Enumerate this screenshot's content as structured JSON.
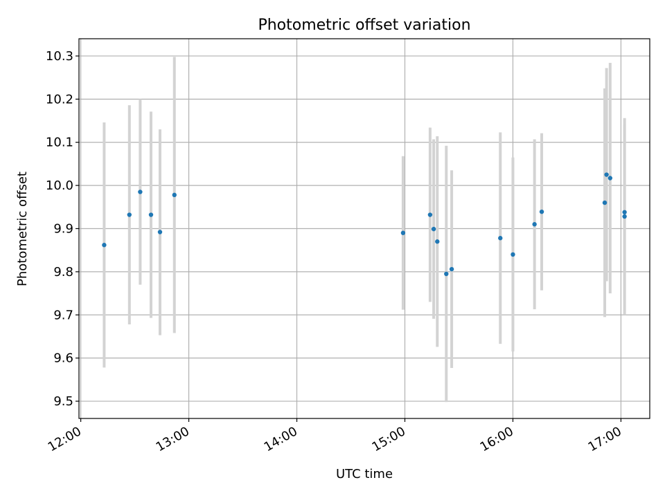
{
  "chart_data": {
    "type": "scatter",
    "title": "Photometric offset variation",
    "xlabel": "UTC time",
    "ylabel": "Photometric offset",
    "x_ticks": [
      "12:00",
      "13:00",
      "14:00",
      "15:00",
      "16:00",
      "17:00"
    ],
    "y_ticks": [
      "9.5",
      "9.6",
      "9.7",
      "9.8",
      "9.9",
      "10.0",
      "10.1",
      "10.2",
      "10.3"
    ],
    "xlim": [
      "11:59",
      "17:16"
    ],
    "ylim": [
      9.46,
      10.34
    ],
    "grid": true,
    "point_color": "#1f77b4",
    "errorbar_color": "#d3d3d3",
    "series": [
      {
        "points": [
          {
            "x": "12:13",
            "y": 9.862,
            "ylow": 9.578,
            "yhigh": 10.146
          },
          {
            "x": "12:27",
            "y": 9.932,
            "ylow": 9.678,
            "yhigh": 10.186
          },
          {
            "x": "12:33",
            "y": 9.985,
            "ylow": 9.77,
            "yhigh": 10.2
          },
          {
            "x": "12:39",
            "y": 9.932,
            "ylow": 9.693,
            "yhigh": 10.171
          },
          {
            "x": "12:44",
            "y": 9.892,
            "ylow": 9.653,
            "yhigh": 10.13
          },
          {
            "x": "12:52",
            "y": 9.978,
            "ylow": 9.658,
            "yhigh": 10.298
          },
          {
            "x": "14:59",
            "y": 9.89,
            "ylow": 9.712,
            "yhigh": 10.068
          },
          {
            "x": "15:14",
            "y": 9.932,
            "ylow": 9.73,
            "yhigh": 10.134
          },
          {
            "x": "15:16",
            "y": 9.899,
            "ylow": 9.691,
            "yhigh": 10.107
          },
          {
            "x": "15:18",
            "y": 9.87,
            "ylow": 9.626,
            "yhigh": 10.114
          },
          {
            "x": "15:23",
            "y": 9.795,
            "ylow": 9.498,
            "yhigh": 10.092
          },
          {
            "x": "15:26",
            "y": 9.806,
            "ylow": 9.577,
            "yhigh": 10.035
          },
          {
            "x": "15:53",
            "y": 9.878,
            "ylow": 9.633,
            "yhigh": 10.123
          },
          {
            "x": "16:00",
            "y": 9.84,
            "ylow": 9.615,
            "yhigh": 10.065
          },
          {
            "x": "16:12",
            "y": 9.91,
            "ylow": 9.713,
            "yhigh": 10.107
          },
          {
            "x": "16:16",
            "y": 9.939,
            "ylow": 9.757,
            "yhigh": 10.121
          },
          {
            "x": "16:51",
            "y": 9.96,
            "ylow": 9.695,
            "yhigh": 10.225
          },
          {
            "x": "16:52",
            "y": 10.025,
            "ylow": 9.778,
            "yhigh": 10.272
          },
          {
            "x": "16:54",
            "y": 10.017,
            "ylow": 9.75,
            "yhigh": 10.284
          },
          {
            "x": "17:02",
            "y": 9.928,
            "ylow": 9.7,
            "yhigh": 10.156
          },
          {
            "x": "17:02",
            "y": 9.938,
            "ylow": 9.734,
            "yhigh": 10.142
          }
        ]
      }
    ]
  }
}
